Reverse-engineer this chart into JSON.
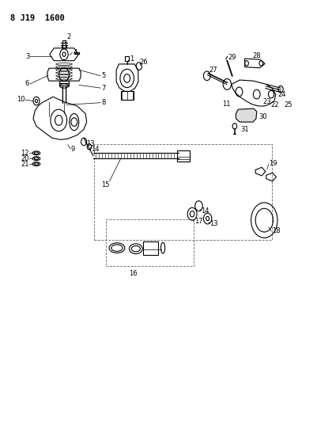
{
  "title": "8 J19  1600",
  "bg_color": "#ffffff",
  "line_color": "#000000",
  "fig_width": 4.01,
  "fig_height": 5.33,
  "dpi": 100
}
